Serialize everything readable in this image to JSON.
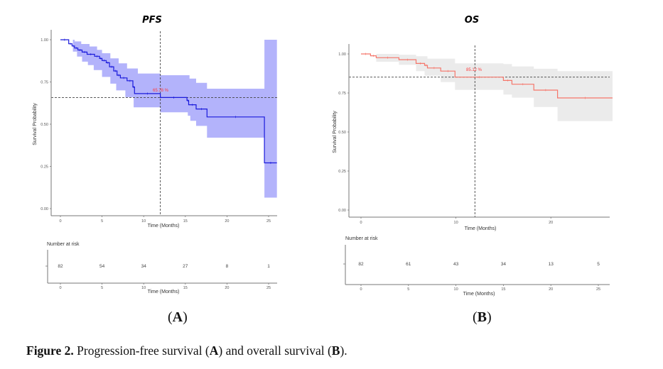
{
  "chart_data": [
    {
      "type": "line",
      "id": "pfs",
      "title": "PFS",
      "xlabel": "Time (Months)",
      "ylabel": "Survival Probability",
      "xlim": [
        -1,
        26
      ],
      "ylim": [
        0,
        1
      ],
      "xticks": [
        0,
        5,
        10,
        15,
        20,
        25
      ],
      "yticks": [
        0.0,
        0.25,
        0.5,
        0.75,
        1.0
      ],
      "ytick_labels": [
        "0.00",
        "0.25",
        "0.50",
        "0.75",
        "1.00"
      ],
      "color": "#1a1adb",
      "band_color": "#b3b3fb",
      "annotation": "65.78 %",
      "reference": {
        "x": 12,
        "y": 0.6578
      },
      "series": [
        {
          "name": "PFS",
          "steps": [
            [
              0,
              1.0
            ],
            [
              1.0,
              0.976
            ],
            [
              1.4,
              0.963
            ],
            [
              1.7,
              0.951
            ],
            [
              2.1,
              0.939
            ],
            [
              2.6,
              0.927
            ],
            [
              3.2,
              0.914
            ],
            [
              4.1,
              0.902
            ],
            [
              4.7,
              0.889
            ],
            [
              5.0,
              0.877
            ],
            [
              5.5,
              0.864
            ],
            [
              5.9,
              0.84
            ],
            [
              6.4,
              0.815
            ],
            [
              6.8,
              0.79
            ],
            [
              7.2,
              0.774
            ],
            [
              8.0,
              0.757
            ],
            [
              8.7,
              0.72
            ],
            [
              8.9,
              0.681
            ],
            [
              12.0,
              0.6578
            ],
            [
              15.2,
              0.64
            ],
            [
              15.4,
              0.615
            ],
            [
              16.3,
              0.59
            ],
            [
              17.6,
              0.543
            ],
            [
              24.5,
              0.271
            ],
            [
              26.0,
              0.271
            ]
          ],
          "lower": [
            [
              0,
              1.0
            ],
            [
              1.5,
              0.93
            ],
            [
              2.0,
              0.9
            ],
            [
              2.6,
              0.87
            ],
            [
              3.3,
              0.85
            ],
            [
              4.0,
              0.82
            ],
            [
              5.0,
              0.78
            ],
            [
              6.0,
              0.74
            ],
            [
              6.7,
              0.7
            ],
            [
              7.8,
              0.66
            ],
            [
              8.8,
              0.6
            ],
            [
              12.0,
              0.57
            ],
            [
              15.3,
              0.55
            ],
            [
              15.6,
              0.52
            ],
            [
              16.3,
              0.49
            ],
            [
              17.6,
              0.42
            ],
            [
              24.5,
              0.065
            ],
            [
              26.0,
              0.065
            ]
          ],
          "upper": [
            [
              0,
              1.0
            ],
            [
              1.7,
              0.99
            ],
            [
              2.5,
              0.975
            ],
            [
              3.5,
              0.96
            ],
            [
              4.4,
              0.94
            ],
            [
              5.0,
              0.92
            ],
            [
              6.0,
              0.89
            ],
            [
              7.0,
              0.86
            ],
            [
              8.0,
              0.83
            ],
            [
              9.3,
              0.8
            ],
            [
              12.0,
              0.79
            ],
            [
              15.5,
              0.77
            ],
            [
              16.3,
              0.745
            ],
            [
              17.6,
              0.71
            ],
            [
              24.5,
              1.0
            ],
            [
              26.0,
              1.0
            ]
          ]
        }
      ],
      "risk_table": {
        "title": "Number at risk",
        "times": [
          0,
          5,
          10,
          15,
          20,
          25
        ],
        "values": [
          82,
          54,
          34,
          27,
          8,
          1
        ],
        "xlabel": "Time (Months)"
      }
    },
    {
      "type": "line",
      "id": "os",
      "title": "OS",
      "xlabel": "Time (Months)",
      "ylabel": "Survival Probability",
      "xlim": [
        -1,
        26.5
      ],
      "ylim": [
        0,
        1
      ],
      "xticks": [
        0,
        10,
        20
      ],
      "yticks": [
        0.0,
        0.25,
        0.5,
        0.75,
        1.0
      ],
      "ytick_labels": [
        "0.00",
        "0.25",
        "0.50",
        "0.75",
        "1.00"
      ],
      "color": "#f5766b",
      "band_color": "#ebebeb",
      "annotation": "85.12 %",
      "reference": {
        "x": 12,
        "y": 0.8512
      },
      "series": [
        {
          "name": "OS",
          "steps": [
            [
              0,
              1.0
            ],
            [
              1.0,
              0.988
            ],
            [
              1.6,
              0.976
            ],
            [
              4.0,
              0.963
            ],
            [
              5.8,
              0.939
            ],
            [
              6.7,
              0.927
            ],
            [
              7.0,
              0.91
            ],
            [
              8.4,
              0.89
            ],
            [
              9.9,
              0.8512
            ],
            [
              15.0,
              0.83
            ],
            [
              15.9,
              0.806
            ],
            [
              18.2,
              0.768
            ],
            [
              20.7,
              0.718
            ],
            [
              26.5,
              0.718
            ]
          ],
          "lower": [
            [
              0,
              1.0
            ],
            [
              1.6,
              0.95
            ],
            [
              4.0,
              0.93
            ],
            [
              5.8,
              0.89
            ],
            [
              6.7,
              0.86
            ],
            [
              8.4,
              0.82
            ],
            [
              9.9,
              0.77
            ],
            [
              15.0,
              0.74
            ],
            [
              15.9,
              0.72
            ],
            [
              18.2,
              0.66
            ],
            [
              20.7,
              0.57
            ],
            [
              26.5,
              0.57
            ]
          ],
          "upper": [
            [
              0,
              1.0
            ],
            [
              1.6,
              1.0
            ],
            [
              4.0,
              0.995
            ],
            [
              5.8,
              0.985
            ],
            [
              7.0,
              0.97
            ],
            [
              9.9,
              0.94
            ],
            [
              15.0,
              0.935
            ],
            [
              15.9,
              0.92
            ],
            [
              18.2,
              0.905
            ],
            [
              20.7,
              0.89
            ],
            [
              26.5,
              0.89
            ]
          ]
        }
      ],
      "risk_table": {
        "title": "Number at risk",
        "times": [
          0,
          5,
          10,
          15,
          20,
          25
        ],
        "values": [
          82,
          61,
          43,
          34,
          13,
          5
        ],
        "xlabel": "Time (Months)"
      }
    }
  ],
  "labels": {
    "panel_a": "A",
    "panel_b": "B"
  },
  "caption": {
    "figure_label": "Figure 2.",
    "text_1": " Progression-free survival (",
    "a": "A",
    "text_2": ") and overall survival (",
    "b": "B",
    "text_3": ")."
  }
}
